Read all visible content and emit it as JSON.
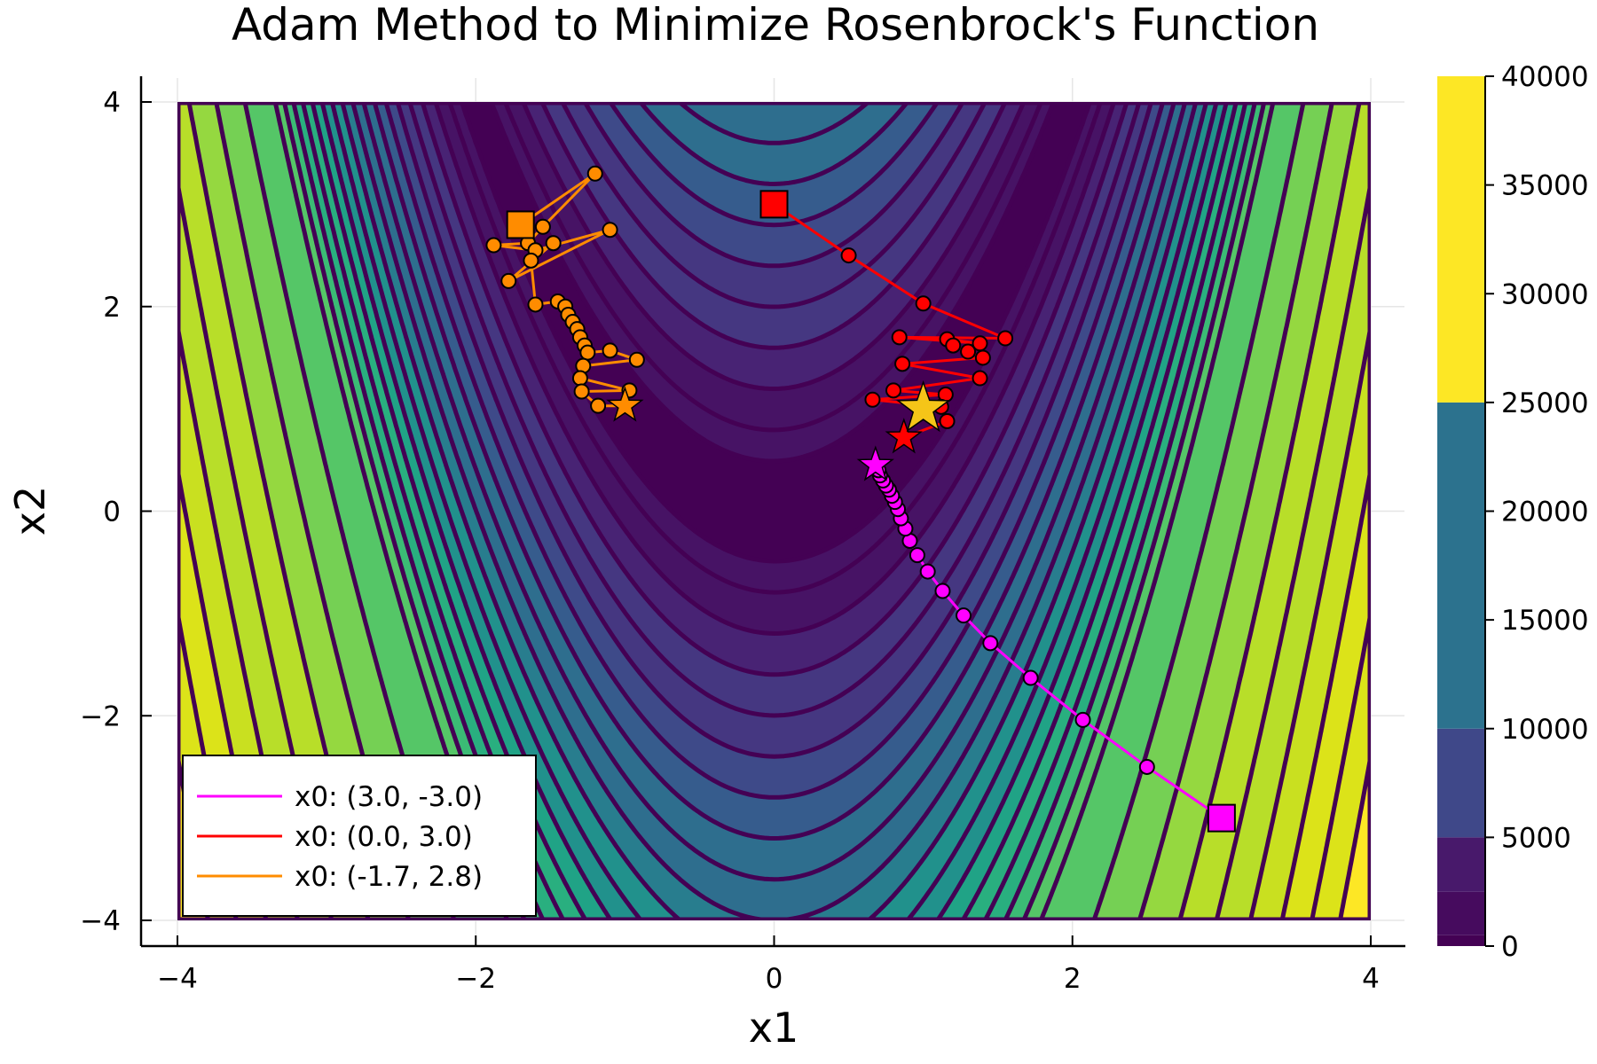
{
  "chart_data": {
    "type": "contour",
    "title": "Adam Method to Minimize Rosenbrock's Function",
    "xlabel": "x1",
    "ylabel": "x2",
    "xlim": [
      -4,
      4
    ],
    "ylim": [
      -4,
      4
    ],
    "x_ticks": [
      {
        "value": -4,
        "label": "−4"
      },
      {
        "value": -2,
        "label": "−2"
      },
      {
        "value": 0,
        "label": "0"
      },
      {
        "value": 2,
        "label": "2"
      },
      {
        "value": 4,
        "label": "4"
      }
    ],
    "y_ticks": [
      {
        "value": -4,
        "label": "−4"
      },
      {
        "value": -2,
        "label": "−2"
      },
      {
        "value": 0,
        "label": "0"
      },
      {
        "value": 2,
        "label": "2"
      },
      {
        "value": 4,
        "label": "4"
      }
    ],
    "grid": true,
    "function": "(1 - x1)^2 + 100 (x2 - x1^2)^2",
    "contour_levels": [
      25,
      64,
      144,
      256,
      400,
      576,
      784,
      1024,
      1296,
      1600,
      1936,
      2304,
      2704,
      3136,
      3600,
      4096,
      4624,
      5184,
      7396,
      10000,
      12996,
      16384,
      20164,
      24336,
      28900,
      33856
    ],
    "contour_line_color": "#440154",
    "colorbar": {
      "range": [
        0,
        40000
      ],
      "ticks": [
        {
          "value": 0,
          "label": "0"
        },
        {
          "value": 5000,
          "label": "5000"
        },
        {
          "value": 10000,
          "label": "10000"
        },
        {
          "value": 15000,
          "label": "15000"
        },
        {
          "value": 20000,
          "label": "20000"
        },
        {
          "value": 25000,
          "label": "25000"
        },
        {
          "value": 30000,
          "label": "30000"
        },
        {
          "value": 35000,
          "label": "35000"
        },
        {
          "value": 40000,
          "label": "40000"
        }
      ],
      "bands": [
        {
          "from": 0,
          "to": 500,
          "color": "#440154"
        },
        {
          "from": 500,
          "to": 2500,
          "color": "#460B5E"
        },
        {
          "from": 2500,
          "to": 5000,
          "color": "#48196B"
        },
        {
          "from": 5000,
          "to": 10000,
          "color": "#3F4889"
        },
        {
          "from": 10000,
          "to": 25000,
          "color": "#2C728E"
        },
        {
          "from": 25000,
          "to": 40000,
          "color": "#FDE725"
        }
      ]
    },
    "region_colors": [
      "#440154",
      "#471365",
      "#482374",
      "#453781",
      "#3E4A89",
      "#365C8D",
      "#2E6E8E",
      "#287D8E",
      "#21918C",
      "#20A386",
      "#29AF7F",
      "#3BBB75",
      "#55C667",
      "#75D054",
      "#95D840",
      "#B8DE29",
      "#C9E020",
      "#DCE319",
      "#FDE725"
    ],
    "minimum": {
      "x": 1.0,
      "y": 1.0,
      "color": "#F5C518"
    },
    "series": [
      {
        "name": "x0: (3.0, -3.0)",
        "color": "#FF00FF",
        "start": [
          3.0,
          -3.0
        ],
        "end": [
          0.68,
          0.45
        ],
        "points": [
          [
            3.0,
            -3.0
          ],
          [
            2.5,
            -2.5
          ],
          [
            2.07,
            -2.04
          ],
          [
            1.72,
            -1.63
          ],
          [
            1.45,
            -1.29
          ],
          [
            1.27,
            -1.02
          ],
          [
            1.13,
            -0.78
          ],
          [
            1.03,
            -0.59
          ],
          [
            0.96,
            -0.43
          ],
          [
            0.91,
            -0.29
          ],
          [
            0.88,
            -0.17
          ],
          [
            0.85,
            -0.07
          ],
          [
            0.83,
            0.02
          ],
          [
            0.81,
            0.09
          ],
          [
            0.79,
            0.15
          ],
          [
            0.77,
            0.21
          ],
          [
            0.75,
            0.25
          ],
          [
            0.73,
            0.3
          ],
          [
            0.71,
            0.35
          ],
          [
            0.7,
            0.4
          ],
          [
            0.68,
            0.45
          ]
        ]
      },
      {
        "name": "x0: (0.0, 3.0)",
        "color": "#FF0000",
        "start": [
          0.0,
          3.0
        ],
        "end": [
          0.87,
          0.72
        ],
        "points": [
          [
            0.0,
            3.0
          ],
          [
            0.5,
            2.5
          ],
          [
            1.0,
            2.03
          ],
          [
            1.55,
            1.69
          ],
          [
            0.84,
            1.7
          ],
          [
            1.38,
            1.64
          ],
          [
            1.16,
            1.68
          ],
          [
            1.2,
            1.62
          ],
          [
            1.3,
            1.56
          ],
          [
            1.4,
            1.5
          ],
          [
            0.86,
            1.44
          ],
          [
            1.38,
            1.3
          ],
          [
            0.8,
            1.18
          ],
          [
            1.15,
            1.14
          ],
          [
            0.66,
            1.09
          ],
          [
            1.12,
            1.02
          ],
          [
            1.16,
            0.88
          ],
          [
            0.87,
            0.72
          ]
        ]
      },
      {
        "name": "x0: (-1.7, 2.8)",
        "color": "#FF8C00",
        "start": [
          -1.7,
          2.8
        ],
        "end": [
          -1.0,
          1.03
        ],
        "points": [
          [
            -1.7,
            2.8
          ],
          [
            -1.2,
            3.3
          ],
          [
            -1.55,
            2.78
          ],
          [
            -1.65,
            2.62
          ],
          [
            -1.88,
            2.6
          ],
          [
            -1.6,
            2.55
          ],
          [
            -1.1,
            2.75
          ],
          [
            -1.78,
            2.25
          ],
          [
            -1.48,
            2.62
          ],
          [
            -1.63,
            2.45
          ],
          [
            -1.6,
            2.02
          ],
          [
            -1.45,
            2.05
          ],
          [
            -1.4,
            2.0
          ],
          [
            -1.38,
            1.92
          ],
          [
            -1.35,
            1.85
          ],
          [
            -1.32,
            1.78
          ],
          [
            -1.3,
            1.7
          ],
          [
            -1.27,
            1.62
          ],
          [
            -1.25,
            1.55
          ],
          [
            -1.1,
            1.57
          ],
          [
            -0.92,
            1.48
          ],
          [
            -1.28,
            1.42
          ],
          [
            -1.3,
            1.3
          ],
          [
            -0.97,
            1.18
          ],
          [
            -1.29,
            1.17
          ],
          [
            -1.18,
            1.03
          ],
          [
            -1.0,
            1.03
          ]
        ]
      }
    ],
    "legend": {
      "position": "bottom-left",
      "entries": [
        "x0: (3.0, -3.0)",
        "x0: (0.0, 3.0)",
        "x0: (-1.7, 2.8)"
      ]
    }
  }
}
